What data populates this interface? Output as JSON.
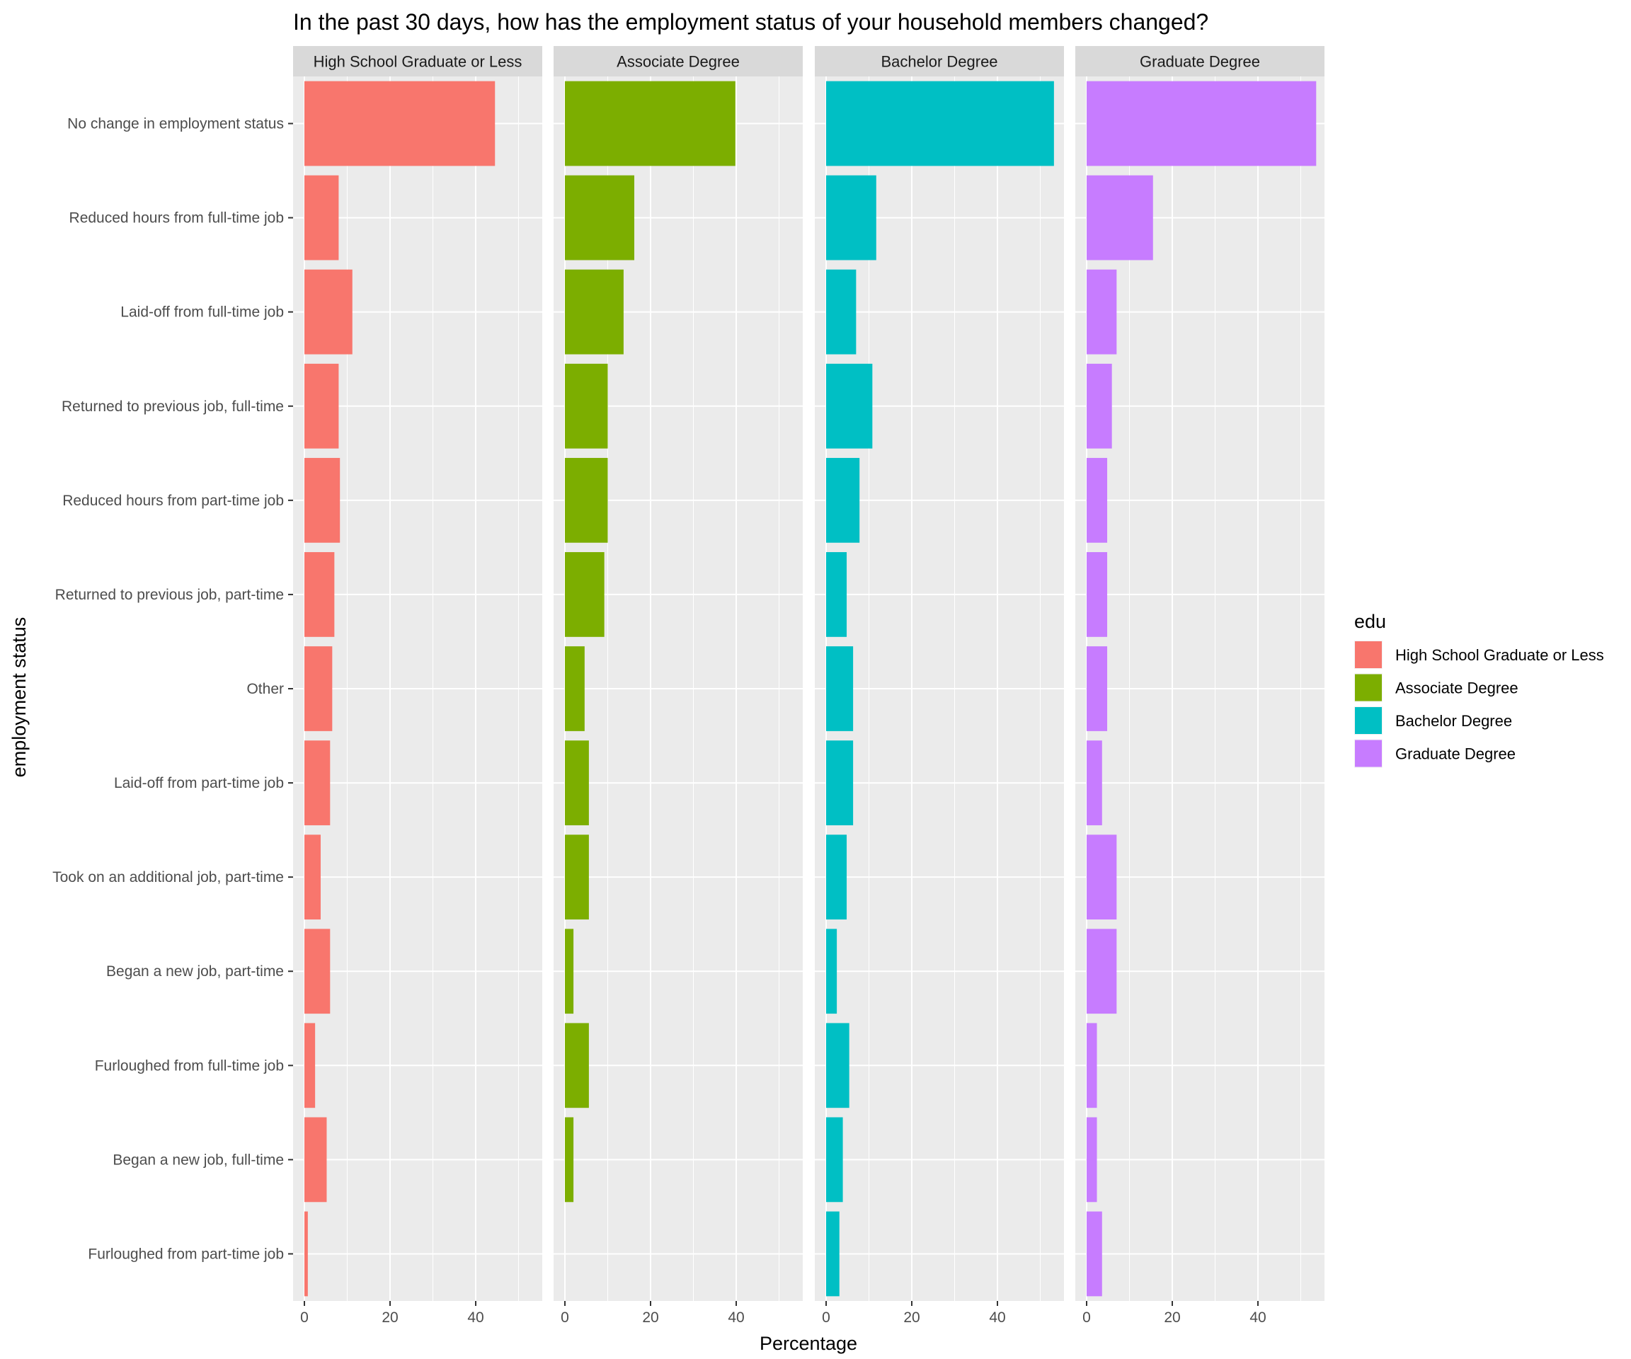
{
  "chart_data": {
    "type": "bar",
    "orientation": "horizontal",
    "facet": "edu",
    "title": "In the past 30 days, how has the employment status of your household members changed?",
    "xlabel": "Percentage",
    "ylabel": "employment status",
    "xlim": [
      0,
      56
    ],
    "xticks": [
      0,
      20,
      40
    ],
    "grid": true,
    "legend": {
      "title": "edu",
      "position": "right",
      "entries": [
        "High School Graduate or Less",
        "Associate Degree",
        "Bachelor Degree",
        "Graduate Degree"
      ]
    },
    "categories": [
      "No change in employment status",
      "Reduced hours from full-time job",
      "Laid-off from full-time job",
      "Returned to previous job, full-time",
      "Reduced hours from part-time job",
      "Returned to previous job, part-time",
      "Other",
      "Laid-off from part-time job",
      "Took on an additional job, part-time",
      "Began a new job, part-time",
      "Furloughed from full-time job",
      "Began a new job, full-time",
      "Furloughed from part-time job"
    ],
    "series": [
      {
        "name": "High School Graduate or Less",
        "color": "#F8766D",
        "values": [
          44.5,
          8.0,
          11.2,
          8.0,
          8.3,
          7.0,
          6.5,
          6.0,
          3.8,
          6.0,
          2.5,
          5.2,
          0.8
        ]
      },
      {
        "name": "Associate Degree",
        "color": "#7CAE00",
        "values": [
          39.8,
          16.2,
          13.7,
          10.0,
          10.0,
          9.2,
          4.6,
          5.6,
          5.6,
          2.0,
          5.6,
          2.0,
          0
        ]
      },
      {
        "name": "Bachelor Degree",
        "color": "#00BFC4",
        "values": [
          53.2,
          11.7,
          7.0,
          10.8,
          7.8,
          4.8,
          6.3,
          6.3,
          4.8,
          2.5,
          5.4,
          3.9,
          3.1
        ]
      },
      {
        "name": "Graduate Degree",
        "color": "#C77CFF",
        "values": [
          53.6,
          15.5,
          7.0,
          5.9,
          4.8,
          4.8,
          4.8,
          3.6,
          7.0,
          7.0,
          2.4,
          2.4,
          3.6
        ]
      }
    ]
  }
}
